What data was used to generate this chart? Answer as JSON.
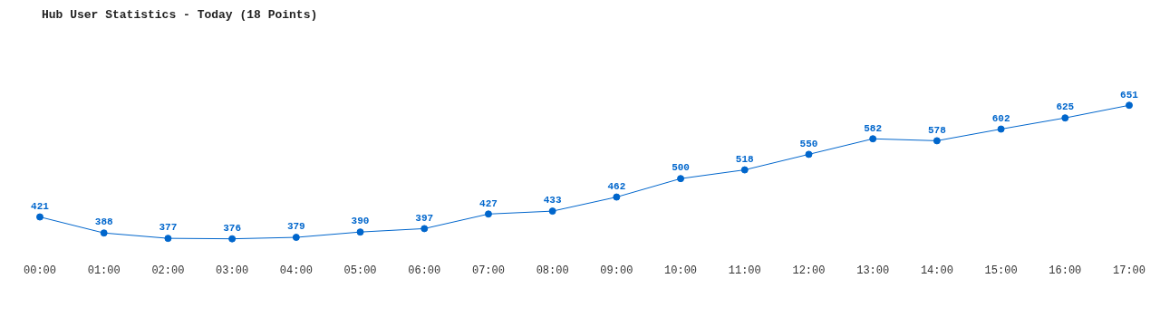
{
  "chart_data": {
    "type": "line",
    "title": "Hub User Statistics - Today (18 Points)",
    "categories": [
      "00:00",
      "01:00",
      "02:00",
      "03:00",
      "04:00",
      "05:00",
      "06:00",
      "07:00",
      "08:00",
      "09:00",
      "10:00",
      "11:00",
      "12:00",
      "13:00",
      "14:00",
      "15:00",
      "16:00",
      "17:00"
    ],
    "series": [
      {
        "color": "#0066cc",
        "values": [
          421,
          388,
          377,
          376,
          379,
          390,
          397,
          427,
          433,
          462,
          500,
          518,
          550,
          582,
          578,
          602,
          625,
          651
        ]
      }
    ],
    "relative": false,
    "data_labels": true,
    "marker": "circle",
    "line_style": "solid",
    "grid": false,
    "legend": false
  }
}
